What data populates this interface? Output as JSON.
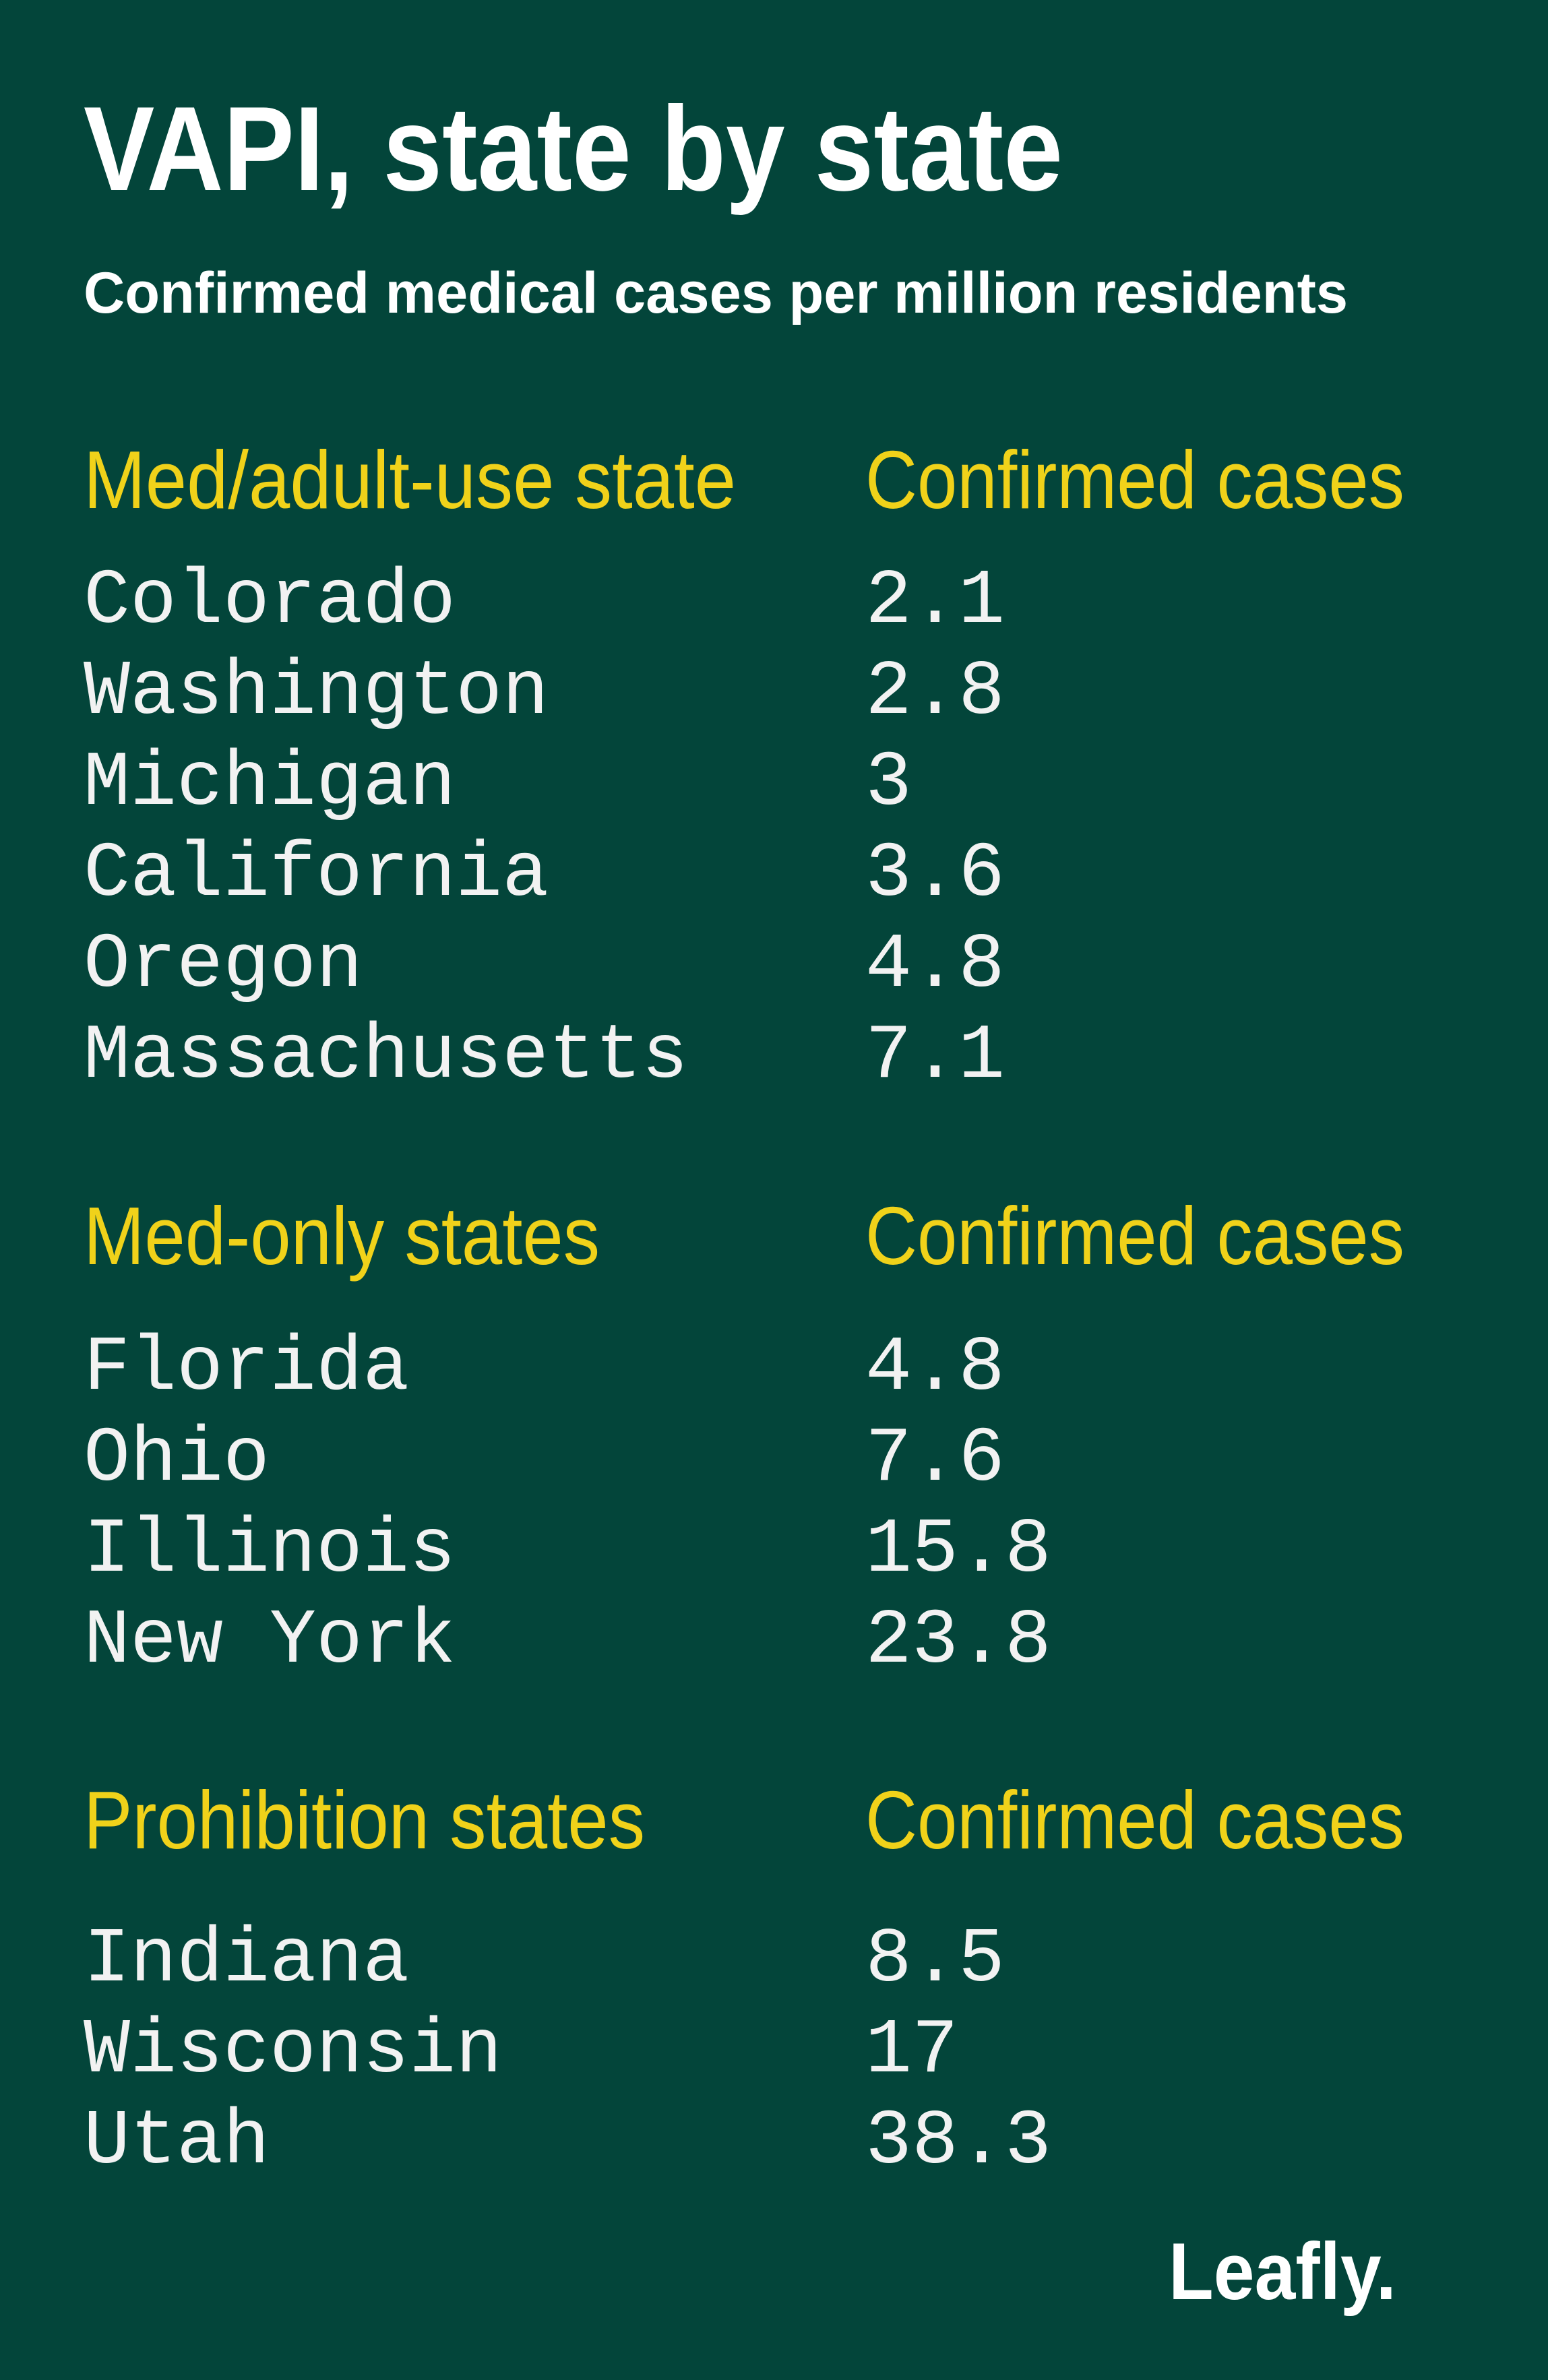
{
  "header": {
    "title": "VAPI, state by state",
    "subtitle": "Confirmed medical cases per million residents"
  },
  "sections": [
    {
      "heading": "Med/adult-use state",
      "value_heading": "Confirmed cases",
      "rows": [
        [
          "Colorado",
          2.1
        ],
        [
          "Washington",
          2.8
        ],
        [
          "Michigan",
          3
        ],
        [
          "California",
          3.6
        ],
        [
          "Oregon",
          4.8
        ],
        [
          "Massachusetts",
          7.1
        ]
      ]
    },
    {
      "heading": "Med-only states",
      "value_heading": "Confirmed cases",
      "rows": [
        [
          "Florida",
          4.8
        ],
        [
          "Ohio",
          7.6
        ],
        [
          "Illinois",
          15.8
        ],
        [
          "New York",
          23.8
        ]
      ]
    },
    {
      "heading": "Prohibition states",
      "value_heading": "Confirmed cases",
      "rows": [
        [
          "Indiana",
          8.5
        ],
        [
          "Wisconsin",
          17
        ],
        [
          "Utah",
          38.3
        ]
      ]
    }
  ],
  "logo": "Leafly."
}
